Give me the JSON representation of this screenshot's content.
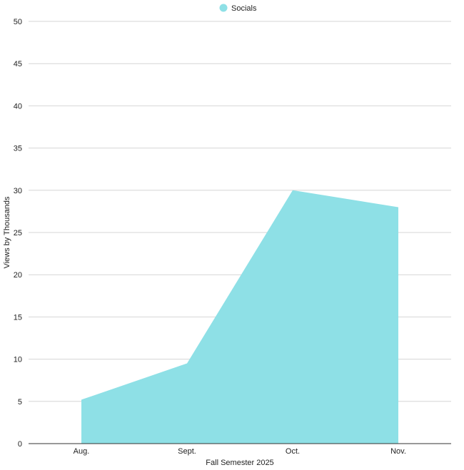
{
  "chart_data": {
    "type": "area",
    "title": "",
    "xlabel": "Fall Semester 2025",
    "ylabel": "Views by Thousands",
    "categories": [
      "Aug.",
      "Sept.",
      "Oct.",
      "Nov."
    ],
    "series": [
      {
        "name": "Socials",
        "values": [
          5.2,
          9.5,
          30,
          28
        ],
        "color": "#8ee0e6"
      }
    ],
    "ylim": [
      0,
      50
    ],
    "yticks": [
      0,
      5,
      10,
      15,
      20,
      25,
      30,
      35,
      40,
      45,
      50
    ],
    "ytick_labels": [
      "0",
      "5",
      "10",
      "15",
      "20",
      "25",
      "30",
      "35",
      "40",
      "45",
      "50"
    ],
    "grid": true,
    "legend_position": "top-center"
  }
}
